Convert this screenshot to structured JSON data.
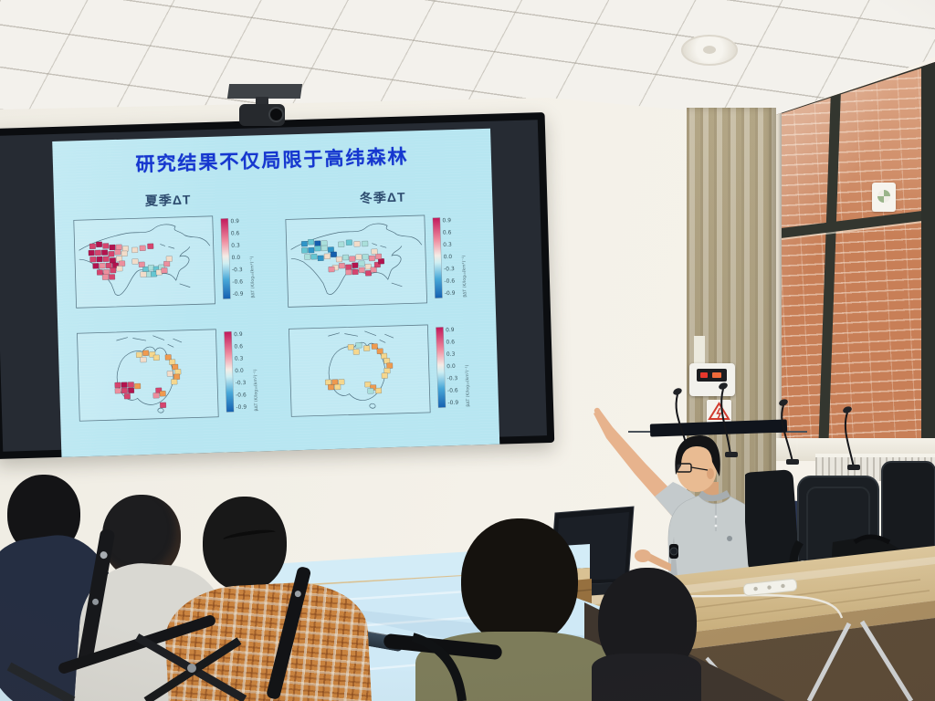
{
  "slide": {
    "title": "研究结果不仅局限于高纬森林",
    "panel_labels": {
      "summer": "夏季ΔT",
      "winter": "冬季ΔT"
    },
    "colors": {
      "title": "#1637cf",
      "slide_bg": "#b7e6f1",
      "label": "#2f4d70"
    }
  },
  "scene_colors": {
    "tablecloth": "#cfe9f6",
    "curtain": "#cdc0a2",
    "brick": "#c87f57",
    "polo_shirt": "#c6cccd",
    "plaid_shirt": "#c9833f",
    "olive_shirt": "#7d7c5a",
    "wood_table": "#d6c196",
    "screen_letterbox": "#262b33"
  },
  "chart_data": {
    "type": "heatmap",
    "title": "研究结果不仅局限于高纬森林",
    "legend_position": "right",
    "palette": [
      "#b3134e",
      "#d6446e",
      "#ec8f9e",
      "#f2dcc9",
      "#aadfdb",
      "#66c6d2",
      "#2f95c8",
      "#145fae",
      "#ef9a4f",
      "#f5d78e"
    ],
    "colorbar": {
      "ticks": [
        "0.9",
        "0.6",
        "0.3",
        "0.0",
        "-0.3",
        "-0.6",
        "-0.9"
      ],
      "range": [
        -0.9,
        0.9
      ],
      "label": "βΔT (K/log₁₀(km²)⁻¹)",
      "gradient": [
        {
          "o": "0%",
          "c": "#c2185b"
        },
        {
          "o": "28%",
          "c": "#ef8da0"
        },
        {
          "o": "47%",
          "c": "#f4ece6"
        },
        {
          "o": "56%",
          "c": "#cdeef2"
        },
        {
          "o": "76%",
          "c": "#49a8d8"
        },
        {
          "o": "100%",
          "c": "#1560b0"
        }
      ]
    },
    "panels": [
      {
        "id": "us-summer",
        "region": "United States",
        "season": "夏季ΔT",
        "outline": "us",
        "cells": [
          [
            8,
            28,
            1
          ],
          [
            13,
            26,
            0
          ],
          [
            18,
            28,
            1
          ],
          [
            23,
            30,
            0
          ],
          [
            28,
            30,
            2
          ],
          [
            33,
            32,
            3
          ],
          [
            7,
            36,
            0
          ],
          [
            12,
            36,
            1
          ],
          [
            17,
            36,
            0
          ],
          [
            22,
            38,
            1
          ],
          [
            27,
            36,
            2
          ],
          [
            32,
            38,
            3
          ],
          [
            8,
            44,
            1
          ],
          [
            13,
            44,
            0
          ],
          [
            18,
            44,
            1
          ],
          [
            23,
            46,
            0
          ],
          [
            28,
            44,
            3
          ],
          [
            10,
            52,
            0
          ],
          [
            15,
            52,
            2
          ],
          [
            20,
            52,
            1
          ],
          [
            25,
            52,
            0
          ],
          [
            30,
            50,
            2
          ],
          [
            13,
            60,
            1
          ],
          [
            18,
            60,
            2
          ],
          [
            23,
            58,
            1
          ],
          [
            28,
            56,
            3
          ],
          [
            17,
            66,
            2
          ],
          [
            22,
            66,
            1
          ],
          [
            40,
            34,
            3
          ],
          [
            46,
            32,
            2
          ],
          [
            52,
            30,
            1
          ],
          [
            40,
            48,
            3
          ],
          [
            45,
            52,
            2
          ],
          [
            48,
            58,
            5
          ],
          [
            52,
            56,
            4
          ],
          [
            56,
            58,
            5
          ],
          [
            60,
            56,
            4
          ],
          [
            50,
            64,
            4
          ],
          [
            54,
            64,
            5
          ],
          [
            58,
            62,
            3
          ],
          [
            62,
            60,
            2
          ],
          [
            64,
            52,
            2
          ],
          [
            66,
            46,
            3
          ],
          [
            46,
            64,
            3
          ]
        ]
      },
      {
        "id": "us-winter",
        "region": "United States",
        "season": "冬季ΔT",
        "outline": "us",
        "cells": [
          [
            8,
            26,
            6
          ],
          [
            13,
            24,
            5
          ],
          [
            18,
            26,
            7
          ],
          [
            23,
            26,
            4
          ],
          [
            8,
            34,
            5
          ],
          [
            13,
            34,
            6
          ],
          [
            18,
            32,
            5
          ],
          [
            23,
            32,
            4
          ],
          [
            28,
            34,
            6
          ],
          [
            10,
            42,
            4
          ],
          [
            15,
            42,
            5
          ],
          [
            20,
            44,
            6
          ],
          [
            25,
            42,
            3
          ],
          [
            30,
            40,
            7
          ],
          [
            36,
            28,
            4
          ],
          [
            42,
            26,
            5
          ],
          [
            48,
            28,
            3
          ],
          [
            54,
            28,
            4
          ],
          [
            34,
            46,
            3
          ],
          [
            39,
            44,
            4
          ],
          [
            44,
            46,
            2
          ],
          [
            49,
            44,
            3
          ],
          [
            54,
            44,
            4
          ],
          [
            59,
            46,
            2
          ],
          [
            36,
            54,
            2
          ],
          [
            41,
            56,
            1
          ],
          [
            46,
            54,
            0
          ],
          [
            41,
            62,
            2
          ],
          [
            46,
            62,
            1
          ],
          [
            51,
            60,
            2
          ],
          [
            56,
            56,
            3
          ],
          [
            51,
            52,
            4
          ],
          [
            56,
            64,
            1
          ],
          [
            60,
            60,
            2
          ],
          [
            63,
            54,
            1
          ],
          [
            66,
            50,
            0
          ],
          [
            64,
            44,
            2
          ],
          [
            61,
            38,
            3
          ],
          [
            31,
            56,
            3
          ],
          [
            28,
            58,
            2
          ]
        ]
      },
      {
        "id": "aus-summer",
        "region": "Australia",
        "season": "夏季ΔT",
        "outline": "aus",
        "cells": [
          [
            24,
            60,
            1
          ],
          [
            29,
            60,
            0
          ],
          [
            34,
            60,
            1
          ],
          [
            39,
            62,
            8
          ],
          [
            24,
            67,
            2
          ],
          [
            29,
            67,
            1
          ],
          [
            34,
            67,
            0
          ],
          [
            31,
            74,
            1
          ],
          [
            41,
            24,
            9
          ],
          [
            46,
            22,
            8
          ],
          [
            51,
            24,
            9
          ],
          [
            44,
            30,
            3
          ],
          [
            54,
            28,
            9
          ],
          [
            63,
            28,
            8
          ],
          [
            66,
            34,
            9
          ],
          [
            68,
            40,
            8
          ],
          [
            70,
            46,
            9
          ],
          [
            69,
            52,
            8
          ],
          [
            67,
            58,
            9
          ],
          [
            64,
            48,
            3
          ],
          [
            55,
            68,
            1
          ],
          [
            58,
            72,
            8
          ],
          [
            53,
            74,
            2
          ],
          [
            58,
            86,
            1
          ]
        ]
      },
      {
        "id": "aus-winter",
        "region": "Australia",
        "season": "冬季ΔT",
        "outline": "aus",
        "cells": [
          [
            23,
            62,
            9
          ],
          [
            28,
            62,
            8
          ],
          [
            33,
            62,
            9
          ],
          [
            25,
            68,
            8
          ],
          [
            30,
            68,
            9
          ],
          [
            41,
            20,
            9
          ],
          [
            47,
            18,
            4
          ],
          [
            53,
            22,
            9
          ],
          [
            59,
            20,
            8
          ],
          [
            45,
            26,
            9
          ],
          [
            63,
            26,
            8
          ],
          [
            66,
            32,
            9
          ],
          [
            68,
            38,
            9
          ],
          [
            70,
            44,
            8
          ],
          [
            68,
            50,
            9
          ],
          [
            66,
            56,
            9
          ],
          [
            53,
            66,
            9
          ],
          [
            57,
            70,
            8
          ],
          [
            61,
            74,
            9
          ],
          [
            55,
            74,
            4
          ]
        ]
      }
    ]
  }
}
